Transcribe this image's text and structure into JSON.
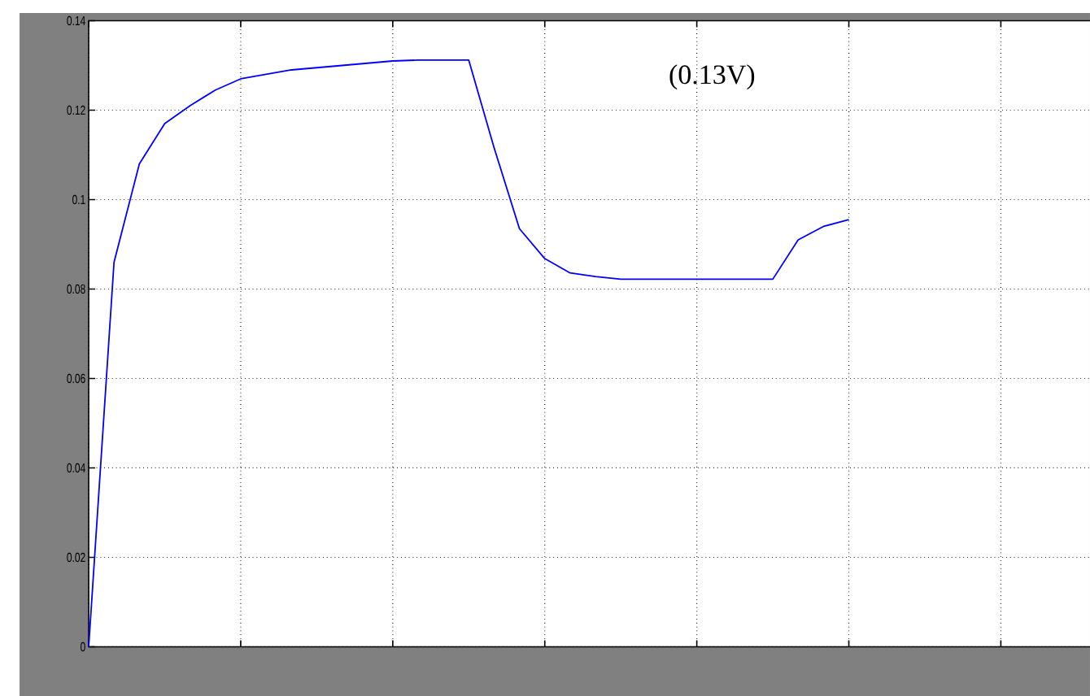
{
  "chart_data": {
    "type": "line",
    "categories": [
      null,
      null,
      null,
      null,
      null,
      null,
      null,
      null,
      null,
      null,
      null,
      null,
      null,
      null,
      null,
      null,
      null,
      null,
      null,
      null,
      null,
      null,
      null,
      null,
      null,
      null,
      null,
      null,
      null,
      null,
      null,
      null,
      null,
      null,
      null,
      null,
      null,
      null,
      null,
      null,
      null
    ],
    "series": [
      {
        "color": "#0000ff",
        "values": [
          0,
          0.086,
          0.108,
          0.117,
          0.121,
          0.1245,
          0.127,
          0.128,
          0.129,
          0.1295,
          0.13,
          0.1305,
          0.131,
          0.1312,
          0.1312,
          0.1312,
          0.1116,
          0.0935,
          0.0868,
          0.0836,
          0.0828,
          0.0822,
          0.0822,
          0.0822,
          0.0822,
          0.0822,
          0.0822,
          0.0822,
          0.091,
          0.094,
          0.0955,
          null,
          null,
          null,
          null,
          null,
          null,
          null,
          null,
          null,
          null
        ]
      }
    ],
    "ylim": [
      0,
      0.14
    ],
    "yticks": [
      0,
      0.02,
      0.04,
      0.06,
      0.08,
      0.1,
      0.12,
      0.14
    ],
    "grid": true,
    "tick_labels": "y",
    "marker": "none",
    "line_style": "solid",
    "annotations": [
      "(0.13V)"
    ]
  }
}
